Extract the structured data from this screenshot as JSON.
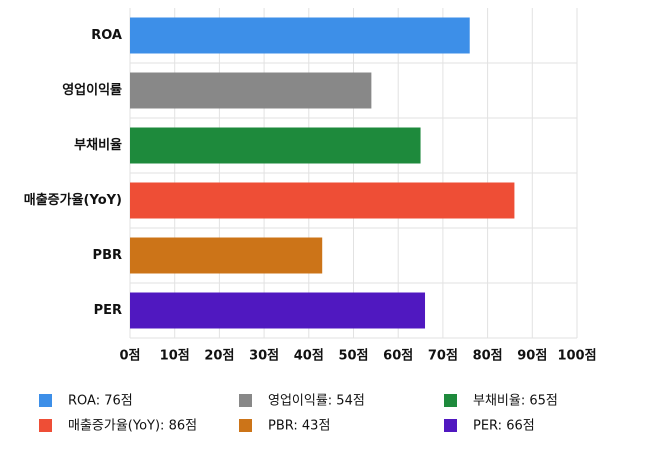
{
  "chart_data": {
    "type": "barh",
    "categories": [
      "ROA",
      "영업이익률",
      "부채비율",
      "매출증가율(YoY)",
      "PBR",
      "PER"
    ],
    "values": [
      76,
      54,
      65,
      86,
      43,
      66
    ],
    "colors": [
      "#3d8fe8",
      "#888888",
      "#1e8a3c",
      "#ee4e36",
      "#cc7418",
      "#5018c0"
    ],
    "legend_labels": [
      "ROA: 76점",
      "영업이익률: 54점",
      "부채비율: 65점",
      "매출증가율(YoY): 86점",
      "PBR: 43점",
      "PER: 66점"
    ],
    "xlim": [
      0,
      100
    ],
    "xticks": [
      {
        "value": 0,
        "label": "0점"
      },
      {
        "value": 10,
        "label": "10점"
      },
      {
        "value": 20,
        "label": "20점"
      },
      {
        "value": 30,
        "label": "30점"
      },
      {
        "value": 40,
        "label": "40점"
      },
      {
        "value": 50,
        "label": "50점"
      },
      {
        "value": 60,
        "label": "60점"
      },
      {
        "value": 70,
        "label": "70점"
      },
      {
        "value": 80,
        "label": "80점"
      },
      {
        "value": 90,
        "label": "90점"
      },
      {
        "value": 100,
        "label": "100점"
      }
    ],
    "grid": true,
    "legend": "bottom"
  }
}
